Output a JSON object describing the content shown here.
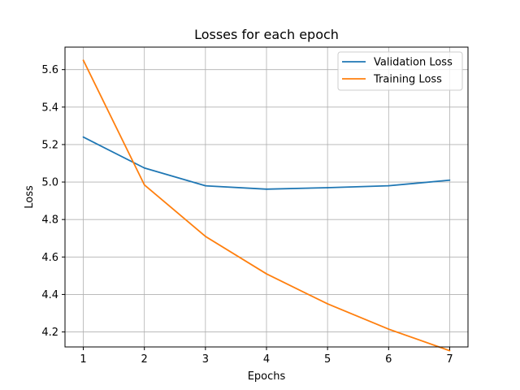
{
  "chart_data": {
    "type": "line",
    "title": "Losses for each epoch",
    "xlabel": "Epochs",
    "ylabel": "Loss",
    "x": [
      1,
      2,
      3,
      4,
      5,
      6,
      7
    ],
    "xlim": [
      0.7,
      7.3
    ],
    "ylim": [
      4.12,
      5.72
    ],
    "xticks": [
      1,
      2,
      3,
      4,
      5,
      6,
      7
    ],
    "yticks": [
      4.2,
      4.4,
      4.6,
      4.8,
      5.0,
      5.2,
      5.4,
      5.6
    ],
    "grid": true,
    "legend_position": "top-right",
    "series": [
      {
        "name": "Validation Loss",
        "color": "#1f77b4",
        "values": [
          5.24,
          5.075,
          4.98,
          4.962,
          4.97,
          4.98,
          5.01
        ]
      },
      {
        "name": "Training Loss",
        "color": "#ff7f0e",
        "values": [
          5.65,
          4.985,
          4.71,
          4.51,
          4.35,
          4.215,
          4.1
        ]
      }
    ]
  }
}
